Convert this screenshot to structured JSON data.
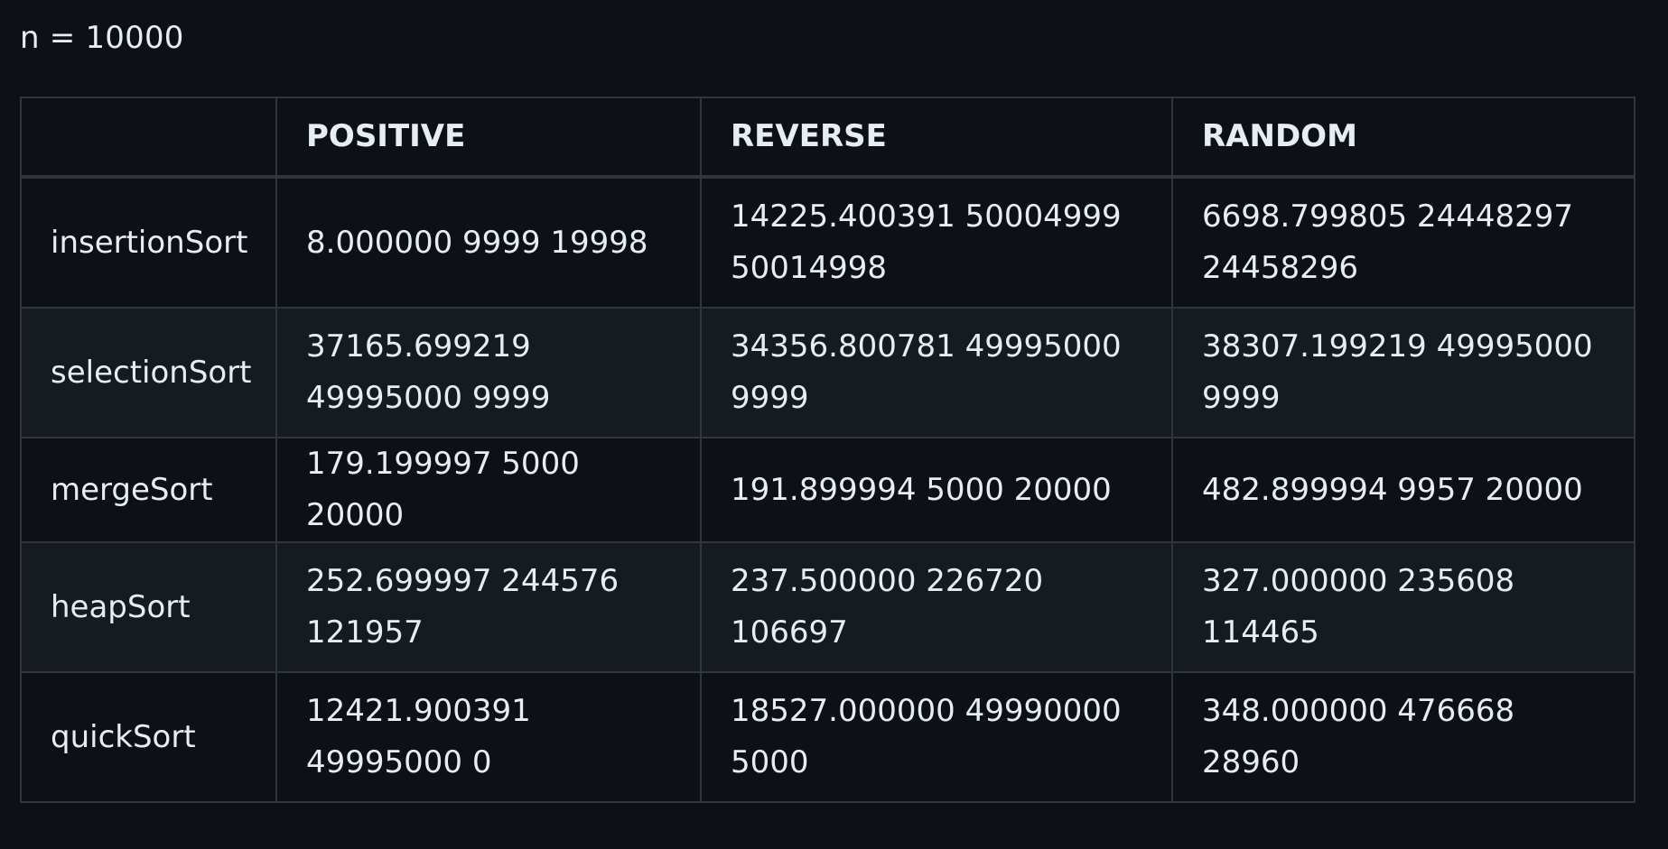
{
  "caption": "n = 10000",
  "table": {
    "headers": [
      "",
      "POSITIVE",
      "REVERSE",
      "RANDOM"
    ],
    "rows": [
      {
        "name": "insertionSort",
        "cells": [
          "8.000000 9999 19998",
          "14225.400391 50004999 50014998",
          "6698.799805 24448297 24458296"
        ]
      },
      {
        "name": "selectionSort",
        "cells": [
          "37165.699219 49995000 9999",
          "34356.800781 49995000 9999",
          "38307.199219 49995000 9999"
        ]
      },
      {
        "name": "mergeSort",
        "cells": [
          "179.199997 5000 20000",
          "191.899994 5000 20000",
          "482.899994 9957 20000"
        ]
      },
      {
        "name": "heapSort",
        "cells": [
          "252.699997 244576 121957",
          "237.500000 226720 106697",
          "327.000000 235608 114465"
        ]
      },
      {
        "name": "quickSort",
        "cells": [
          "12421.900391 49995000 0",
          "18527.000000 49990000 5000",
          "348.000000 476668 28960"
        ]
      }
    ]
  }
}
